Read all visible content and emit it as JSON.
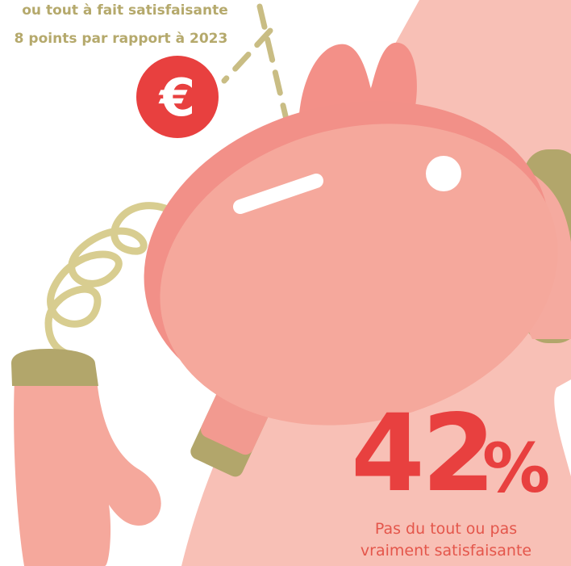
{
  "header": {
    "lines": [
      "ou tout à fait satisfaisante",
      "8 points par rapport à 2023"
    ]
  },
  "badge": {
    "symbol": "€"
  },
  "stat": {
    "value": "42",
    "unit": "%",
    "caption": [
      "Pas du tout ou pas",
      "vraiment satisfaisante"
    ]
  }
}
